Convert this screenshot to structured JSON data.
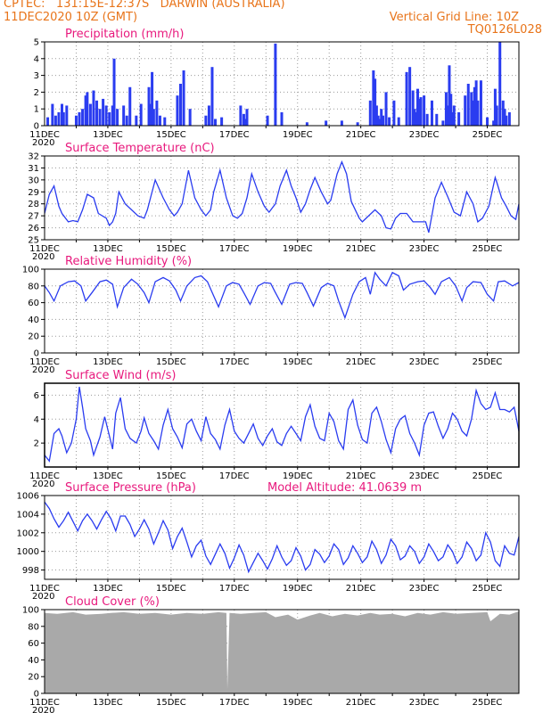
{
  "header": {
    "line1_left": "CPTEC:   131:15E-12:37S   DARWIN (AUSTRALIA)",
    "line2_left": "11DEC2020 10Z (GMT)",
    "line2_right": "Vertical Grid Line: 10Z",
    "line3_right": "TQ0126L028"
  },
  "x_axis": {
    "date_ticks": [
      "11DEC",
      "13DEC",
      "15DEC",
      "17DEC",
      "19DEC",
      "21DEC",
      "23DEC",
      "25DEC"
    ],
    "year_label": "2020",
    "day_range": [
      0,
      15
    ]
  },
  "chart_data": [
    {
      "type": "bar",
      "title": "Precipitation (mm/h)",
      "ylim": [
        0,
        5
      ],
      "yticks": [
        "0",
        "1",
        "2",
        "3",
        "4",
        "5"
      ],
      "color": "#2a3cf0",
      "grid": true,
      "x_days": [
        0.1,
        0.25,
        0.35,
        0.45,
        0.55,
        0.6,
        0.7,
        1.0,
        1.1,
        1.2,
        1.3,
        1.35,
        1.45,
        1.55,
        1.65,
        1.75,
        1.85,
        1.95,
        2.05,
        2.15,
        2.2,
        2.3,
        2.5,
        2.6,
        2.7,
        2.9,
        3.05,
        3.3,
        3.35,
        3.4,
        3.45,
        3.55,
        3.65,
        3.8,
        4.2,
        4.3,
        4.4,
        4.6,
        5.1,
        5.2,
        5.3,
        5.4,
        5.6,
        6.2,
        6.3,
        6.35,
        6.4,
        7.05,
        7.3,
        7.5,
        8.3,
        8.9,
        9.4,
        9.9,
        10.3,
        10.4,
        10.45,
        10.5,
        10.55,
        10.6,
        10.65,
        10.7,
        10.8,
        10.9,
        11.05,
        11.2,
        11.45,
        11.55,
        11.65,
        11.7,
        11.75,
        11.8,
        11.85,
        11.9,
        12.0,
        12.1,
        12.25,
        12.4,
        12.6,
        12.7,
        12.75,
        12.8,
        12.85,
        12.9,
        12.95,
        13.1,
        13.3,
        13.4,
        13.5,
        13.55,
        13.6,
        13.65,
        13.7,
        13.8,
        14.0,
        14.2,
        14.25,
        14.3,
        14.4,
        14.5,
        14.55,
        14.6,
        14.7
      ],
      "values": [
        0.5,
        1.3,
        0.6,
        0.8,
        1.3,
        0.8,
        1.2,
        0.6,
        0.8,
        1.0,
        1.8,
        2.0,
        1.3,
        2.1,
        1.5,
        1.0,
        1.6,
        1.2,
        0.8,
        1.2,
        4.0,
        1.0,
        1.2,
        0.6,
        2.3,
        0.6,
        1.3,
        2.3,
        1.3,
        3.2,
        1.0,
        1.5,
        0.6,
        0.5,
        1.8,
        2.5,
        3.3,
        1.0,
        0.6,
        1.2,
        3.5,
        0.4,
        0.5,
        1.2,
        0.7,
        0.4,
        1.0,
        0.6,
        4.9,
        0.8,
        0.2,
        0.3,
        0.3,
        0.2,
        1.5,
        3.3,
        2.8,
        1.2,
        0.6,
        0.4,
        1.0,
        0.6,
        2.0,
        0.5,
        1.5,
        0.5,
        3.2,
        3.5,
        2.1,
        1.0,
        0.8,
        2.2,
        1.6,
        1.7,
        1.8,
        0.7,
        1.5,
        0.7,
        0.3,
        2.0,
        1.2,
        3.6,
        1.9,
        0.8,
        1.2,
        0.8,
        1.8,
        2.5,
        2.0,
        1.5,
        2.3,
        2.7,
        1.5,
        2.7,
        0.5,
        0.3,
        2.2,
        1.2,
        5.0,
        1.5,
        1.0,
        0.6,
        0.8
      ]
    },
    {
      "type": "line",
      "title": "Surface Temperature (nC)",
      "ylim": [
        25,
        32
      ],
      "yticks": [
        "25",
        "26",
        "27",
        "28",
        "29",
        "30",
        "31",
        "32"
      ],
      "color": "#2a3cf0",
      "grid": true,
      "x_days": [
        0,
        0.15,
        0.3,
        0.45,
        0.55,
        0.75,
        0.9,
        1.05,
        1.2,
        1.35,
        1.55,
        1.7,
        1.95,
        2.05,
        2.15,
        2.25,
        2.35,
        2.55,
        2.75,
        2.95,
        3.15,
        3.25,
        3.35,
        3.5,
        3.75,
        3.95,
        4.1,
        4.2,
        4.35,
        4.55,
        4.75,
        4.95,
        5.1,
        5.25,
        5.35,
        5.55,
        5.75,
        5.95,
        6.1,
        6.25,
        6.4,
        6.55,
        6.75,
        6.95,
        7.1,
        7.3,
        7.45,
        7.65,
        7.8,
        7.95,
        8.1,
        8.25,
        8.4,
        8.55,
        8.75,
        8.95,
        9.05,
        9.25,
        9.4,
        9.55,
        9.7,
        9.95,
        10.05,
        10.25,
        10.45,
        10.65,
        10.8,
        10.95,
        11.1,
        11.25,
        11.45,
        11.65,
        11.85,
        12.05,
        12.15,
        12.35,
        12.55,
        12.75,
        12.95,
        13.15,
        13.35,
        13.55,
        13.7,
        13.85,
        14.05,
        14.25,
        14.3,
        14.45,
        14.6,
        14.75,
        14.9,
        15.0
      ],
      "values": [
        27.2,
        28.8,
        29.5,
        27.8,
        27.2,
        26.5,
        26.6,
        26.5,
        27.5,
        28.8,
        28.5,
        27.2,
        26.8,
        26.2,
        26.5,
        27.2,
        29.0,
        28.0,
        27.5,
        27.0,
        26.8,
        27.5,
        28.5,
        30.0,
        28.5,
        27.5,
        27.0,
        27.3,
        28.0,
        30.8,
        28.5,
        27.5,
        27.0,
        27.5,
        29.0,
        30.8,
        28.5,
        27.0,
        26.8,
        27.2,
        28.5,
        30.5,
        29.0,
        27.8,
        27.3,
        28.0,
        29.5,
        30.8,
        29.5,
        28.5,
        27.3,
        28.0,
        29.2,
        30.2,
        29.0,
        28.0,
        28.3,
        30.5,
        31.5,
        30.5,
        28.2,
        26.8,
        26.5,
        27.0,
        27.5,
        27.0,
        26.0,
        25.9,
        26.8,
        27.2,
        27.2,
        26.5,
        26.5,
        26.5,
        25.6,
        28.5,
        29.8,
        28.6,
        27.3,
        27.0,
        29.0,
        28.0,
        26.5,
        26.8,
        27.8,
        30.2,
        29.8,
        28.5,
        27.8,
        27.0,
        26.7,
        28.0
      ]
    },
    {
      "type": "line",
      "title": "Relative Humidity (%)",
      "ylim": [
        0,
        100
      ],
      "yticks": [
        "0",
        "20",
        "40",
        "60",
        "80",
        "100"
      ],
      "color": "#2a3cf0",
      "grid": true,
      "x_days": [
        0,
        0.15,
        0.3,
        0.5,
        0.75,
        0.95,
        1.15,
        1.3,
        1.5,
        1.75,
        1.95,
        2.15,
        2.3,
        2.5,
        2.75,
        2.95,
        3.15,
        3.3,
        3.5,
        3.75,
        3.95,
        4.15,
        4.3,
        4.5,
        4.75,
        4.95,
        5.15,
        5.3,
        5.5,
        5.75,
        5.95,
        6.15,
        6.3,
        6.5,
        6.75,
        6.95,
        7.15,
        7.3,
        7.5,
        7.75,
        7.95,
        8.15,
        8.3,
        8.5,
        8.75,
        8.95,
        9.15,
        9.3,
        9.5,
        9.75,
        9.95,
        10.15,
        10.3,
        10.45,
        10.6,
        10.8,
        11.0,
        11.2,
        11.35,
        11.55,
        11.8,
        12.0,
        12.2,
        12.35,
        12.55,
        12.8,
        13.0,
        13.2,
        13.35,
        13.55,
        13.8,
        14.0,
        14.2,
        14.35,
        14.55,
        14.8,
        15.0
      ],
      "values": [
        80,
        72,
        62,
        80,
        85,
        86,
        80,
        62,
        72,
        85,
        87,
        82,
        55,
        78,
        88,
        82,
        72,
        60,
        85,
        90,
        86,
        75,
        62,
        80,
        90,
        92,
        85,
        72,
        55,
        80,
        84,
        82,
        72,
        58,
        80,
        84,
        83,
        72,
        58,
        82,
        84,
        83,
        72,
        56,
        78,
        83,
        80,
        62,
        42,
        70,
        85,
        90,
        70,
        96,
        88,
        80,
        96,
        92,
        75,
        82,
        85,
        86,
        78,
        70,
        85,
        90,
        80,
        62,
        78,
        85,
        84,
        70,
        62,
        85,
        86,
        80,
        84
      ]
    },
    {
      "type": "line",
      "title": "Surface Wind (m/s)",
      "ylim": [
        0,
        7
      ],
      "yticks": [
        "2",
        "4",
        "6"
      ],
      "color": "#2a3cf0",
      "grid": true,
      "x_days": [
        0,
        0.15,
        0.3,
        0.45,
        0.55,
        0.7,
        0.85,
        1.0,
        1.1,
        1.2,
        1.3,
        1.45,
        1.55,
        1.75,
        1.9,
        2.05,
        2.15,
        2.25,
        2.4,
        2.55,
        2.7,
        2.9,
        3.05,
        3.15,
        3.3,
        3.45,
        3.6,
        3.75,
        3.9,
        4.05,
        4.2,
        4.35,
        4.5,
        4.65,
        4.8,
        4.95,
        5.1,
        5.25,
        5.4,
        5.55,
        5.7,
        5.85,
        6.0,
        6.15,
        6.3,
        6.45,
        6.6,
        6.75,
        6.9,
        7.05,
        7.2,
        7.35,
        7.5,
        7.65,
        7.8,
        7.95,
        8.1,
        8.25,
        8.4,
        8.55,
        8.7,
        8.85,
        9.0,
        9.15,
        9.3,
        9.45,
        9.6,
        9.75,
        9.9,
        10.05,
        10.2,
        10.35,
        10.5,
        10.65,
        10.8,
        10.95,
        11.1,
        11.25,
        11.4,
        11.55,
        11.7,
        11.85,
        12.0,
        12.15,
        12.3,
        12.45,
        12.6,
        12.75,
        12.9,
        13.05,
        13.2,
        13.35,
        13.5,
        13.65,
        13.8,
        13.95,
        14.1,
        14.25,
        14.4,
        14.55,
        14.7,
        14.85,
        15.0
      ],
      "values": [
        1.0,
        0.5,
        2.8,
        3.2,
        2.6,
        1.2,
        2.0,
        4.0,
        6.7,
        5.0,
        3.2,
        2.2,
        1.0,
        2.5,
        4.2,
        2.6,
        1.5,
        4.5,
        5.8,
        3.2,
        2.4,
        2.0,
        3.0,
        4.1,
        2.8,
        2.2,
        1.5,
        3.5,
        4.8,
        3.2,
        2.5,
        1.6,
        3.6,
        4.0,
        3.0,
        2.2,
        4.2,
        2.8,
        2.3,
        1.5,
        3.5,
        4.8,
        3.0,
        2.4,
        2.0,
        2.8,
        3.6,
        2.4,
        1.8,
        2.6,
        3.2,
        2.1,
        1.8,
        2.8,
        3.4,
        2.8,
        2.2,
        4.2,
        5.2,
        3.4,
        2.4,
        2.2,
        4.5,
        3.8,
        2.2,
        1.5,
        4.8,
        5.6,
        3.5,
        2.3,
        2.0,
        4.5,
        5.0,
        3.8,
        2.3,
        1.2,
        3.2,
        4.0,
        4.3,
        2.8,
        2.0,
        1.0,
        3.5,
        4.5,
        4.6,
        3.4,
        2.4,
        3.2,
        4.5,
        4.0,
        3.0,
        2.6,
        4.0,
        6.4,
        5.3,
        4.8,
        5.0,
        6.2,
        4.8,
        4.8,
        4.6,
        5.0,
        3.0
      ]
    },
    {
      "type": "line",
      "title": "Surface Pressure (hPa)",
      "annotation": "Model Altitude: 41.0639 m",
      "ylim": [
        997,
        1006
      ],
      "yticks": [
        "998",
        "1000",
        "1002",
        "1004",
        "1006"
      ],
      "color": "#2a3cf0",
      "grid": true,
      "x_days": [
        0,
        0.15,
        0.3,
        0.45,
        0.6,
        0.75,
        0.9,
        1.05,
        1.2,
        1.35,
        1.5,
        1.65,
        1.8,
        1.95,
        2.1,
        2.25,
        2.4,
        2.55,
        2.7,
        2.85,
        3.0,
        3.15,
        3.3,
        3.45,
        3.6,
        3.75,
        3.9,
        4.05,
        4.2,
        4.35,
        4.5,
        4.65,
        4.8,
        4.95,
        5.1,
        5.25,
        5.4,
        5.55,
        5.7,
        5.85,
        6.0,
        6.15,
        6.3,
        6.45,
        6.6,
        6.75,
        6.9,
        7.05,
        7.2,
        7.35,
        7.5,
        7.65,
        7.8,
        7.95,
        8.1,
        8.25,
        8.4,
        8.55,
        8.7,
        8.85,
        9.0,
        9.15,
        9.3,
        9.45,
        9.6,
        9.75,
        9.9,
        10.05,
        10.2,
        10.35,
        10.5,
        10.65,
        10.8,
        10.95,
        11.1,
        11.25,
        11.4,
        11.55,
        11.7,
        11.85,
        12.0,
        12.15,
        12.3,
        12.45,
        12.6,
        12.75,
        12.9,
        13.05,
        13.2,
        13.35,
        13.5,
        13.65,
        13.8,
        13.95,
        14.1,
        14.25,
        14.4,
        14.55,
        14.7,
        14.85,
        15.0
      ],
      "values": [
        1005.3,
        1004.6,
        1003.5,
        1002.6,
        1003.3,
        1004.2,
        1003.2,
        1002.2,
        1003.3,
        1004.0,
        1003.3,
        1002.4,
        1003.4,
        1004.3,
        1003.5,
        1002.2,
        1003.8,
        1003.8,
        1002.9,
        1001.6,
        1002.4,
        1003.4,
        1002.4,
        1000.8,
        1002.0,
        1003.3,
        1002.3,
        1000.3,
        1001.6,
        1002.5,
        1001.0,
        999.4,
        1000.6,
        1001.2,
        999.5,
        998.6,
        999.7,
        1000.8,
        999.8,
        998.2,
        999.3,
        1000.7,
        999.6,
        997.8,
        998.8,
        999.8,
        999.0,
        998.1,
        999.2,
        1000.6,
        999.4,
        998.5,
        999.0,
        1000.4,
        999.5,
        998.0,
        998.6,
        1000.2,
        999.7,
        998.8,
        999.5,
        1000.8,
        1000.2,
        998.6,
        999.3,
        1000.6,
        999.8,
        998.8,
        999.4,
        1001.1,
        1000.2,
        998.7,
        999.6,
        1001.3,
        1000.6,
        999.1,
        999.5,
        1000.6,
        1000.0,
        998.7,
        999.4,
        1000.8,
        1000.0,
        999.0,
        999.4,
        1000.7,
        1000.0,
        998.7,
        999.4,
        1001.0,
        1000.3,
        999.0,
        999.6,
        1002.0,
        1001.0,
        999.0,
        998.4,
        1000.6,
        999.8,
        999.6,
        1001.6
      ]
    },
    {
      "type": "area",
      "title": "Cloud Cover (%)",
      "ylim": [
        0,
        100
      ],
      "yticks": [
        "0",
        "20",
        "40",
        "60",
        "80",
        "100"
      ],
      "color": "#a9a9a9",
      "grid": true,
      "x_days": [
        0,
        0.4,
        0.9,
        1.3,
        1.8,
        2.1,
        2.5,
        3.0,
        3.5,
        4.0,
        4.5,
        5.0,
        5.5,
        5.75,
        5.78,
        5.85,
        6.2,
        6.6,
        7.0,
        7.3,
        7.7,
        8.0,
        8.4,
        8.7,
        9.1,
        9.5,
        9.9,
        10.3,
        10.6,
        11.0,
        11.4,
        11.8,
        12.2,
        12.6,
        13.0,
        13.5,
        14.0,
        14.1,
        14.4,
        14.7,
        15.0
      ],
      "values": [
        96,
        95,
        97,
        94,
        95,
        96,
        97,
        95,
        96,
        94,
        96,
        95,
        97,
        96,
        5,
        96,
        95,
        96,
        97,
        91,
        94,
        88,
        93,
        96,
        92,
        95,
        93,
        96,
        94,
        95,
        92,
        96,
        94,
        97,
        95,
        96,
        97,
        86,
        95,
        94,
        98
      ]
    }
  ]
}
